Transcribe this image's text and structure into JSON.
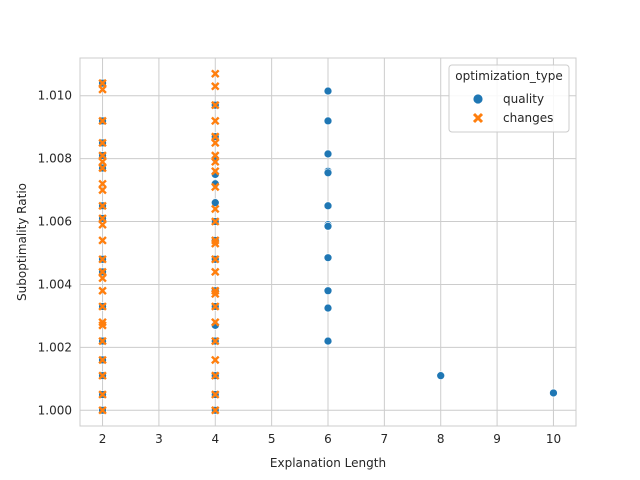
{
  "chart_data": {
    "type": "scatter",
    "title": "",
    "xlabel": "Explanation Length",
    "ylabel": "Suboptimality Ratio",
    "xlim": [
      1.6,
      10.4
    ],
    "ylim": [
      0.9995,
      1.0112
    ],
    "xticks": [
      2,
      3,
      4,
      5,
      6,
      7,
      8,
      9,
      10
    ],
    "yticks": [
      1.0,
      1.002,
      1.004,
      1.006,
      1.008,
      1.01
    ],
    "ytick_labels": [
      "1.000",
      "1.002",
      "1.004",
      "1.006",
      "1.008",
      "1.010"
    ],
    "grid": true,
    "legend": {
      "title": "optimization_type",
      "placement": "top-right"
    },
    "series": [
      {
        "name": "quality",
        "marker": "circle",
        "color": "#1f77b4",
        "points": [
          [
            2,
            1.0104
          ],
          [
            2,
            1.0092
          ],
          [
            2,
            1.0085
          ],
          [
            2,
            1.0081
          ],
          [
            2,
            1.0077
          ],
          [
            2,
            1.0065
          ],
          [
            2,
            1.0061
          ],
          [
            2,
            1.0048
          ],
          [
            2,
            1.0044
          ],
          [
            2,
            1.0033
          ],
          [
            2,
            1.0022
          ],
          [
            2,
            1.0016
          ],
          [
            2,
            1.0011
          ],
          [
            2,
            1.0005
          ],
          [
            2,
            1.0
          ],
          [
            4,
            1.0097
          ],
          [
            4,
            1.0087
          ],
          [
            4,
            1.008
          ],
          [
            4,
            1.0075
          ],
          [
            4,
            1.0072
          ],
          [
            4,
            1.0066
          ],
          [
            4,
            1.006
          ],
          [
            4,
            1.0054
          ],
          [
            4,
            1.0048
          ],
          [
            4,
            1.0038
          ],
          [
            4,
            1.0033
          ],
          [
            4,
            1.0027
          ],
          [
            4,
            1.0022
          ],
          [
            4,
            1.0011
          ],
          [
            4,
            1.0005
          ],
          [
            4,
            1.0
          ],
          [
            6,
            1.01015
          ],
          [
            6,
            1.0092
          ],
          [
            6,
            1.00815
          ],
          [
            6,
            1.0076
          ],
          [
            6,
            1.00755
          ],
          [
            6,
            1.0065
          ],
          [
            6,
            1.0059
          ],
          [
            6,
            1.00585
          ],
          [
            6,
            1.00485
          ],
          [
            6,
            1.0038
          ],
          [
            6,
            1.00325
          ],
          [
            6,
            1.0022
          ],
          [
            8,
            1.0011
          ],
          [
            10,
            1.00055
          ]
        ]
      },
      {
        "name": "changes",
        "marker": "x",
        "color": "#ff7f0e",
        "points": [
          [
            2,
            1.0104
          ],
          [
            2,
            1.0102
          ],
          [
            2,
            1.0092
          ],
          [
            2,
            1.0085
          ],
          [
            2,
            1.0081
          ],
          [
            2,
            1.0079
          ],
          [
            2,
            1.0077
          ],
          [
            2,
            1.0072
          ],
          [
            2,
            1.007
          ],
          [
            2,
            1.0065
          ],
          [
            2,
            1.0061
          ],
          [
            2,
            1.0059
          ],
          [
            2,
            1.0054
          ],
          [
            2,
            1.0048
          ],
          [
            2,
            1.0044
          ],
          [
            2,
            1.0042
          ],
          [
            2,
            1.0038
          ],
          [
            2,
            1.0033
          ],
          [
            2,
            1.0028
          ],
          [
            2,
            1.0027
          ],
          [
            2,
            1.0022
          ],
          [
            2,
            1.0016
          ],
          [
            2,
            1.0011
          ],
          [
            2,
            1.0005
          ],
          [
            2,
            1.0
          ],
          [
            4,
            1.0107
          ],
          [
            4,
            1.0103
          ],
          [
            4,
            1.0097
          ],
          [
            4,
            1.0092
          ],
          [
            4,
            1.0087
          ],
          [
            4,
            1.0085
          ],
          [
            4,
            1.0081
          ],
          [
            4,
            1.0079
          ],
          [
            4,
            1.0076
          ],
          [
            4,
            1.0071
          ],
          [
            4,
            1.0064
          ],
          [
            4,
            1.006
          ],
          [
            4,
            1.0054
          ],
          [
            4,
            1.0053
          ],
          [
            4,
            1.0048
          ],
          [
            4,
            1.0044
          ],
          [
            4,
            1.0038
          ],
          [
            4,
            1.0037
          ],
          [
            4,
            1.0033
          ],
          [
            4,
            1.0028
          ],
          [
            4,
            1.0022
          ],
          [
            4,
            1.0016
          ],
          [
            4,
            1.0011
          ],
          [
            4,
            1.0005
          ],
          [
            4,
            1.0
          ]
        ]
      }
    ]
  }
}
